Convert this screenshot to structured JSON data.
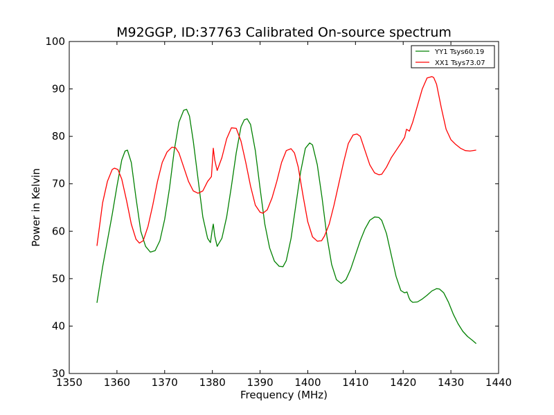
{
  "chart_data": {
    "type": "line",
    "title": "M92GGP, ID:37763 Calibrated On-source spectrum",
    "xlabel": "Frequency (MHz)",
    "ylabel": "Power in Kelvin",
    "xlim": [
      1350,
      1440
    ],
    "ylim": [
      30,
      100
    ],
    "xticks": [
      "1350",
      "1360",
      "1370",
      "1380",
      "1390",
      "1400",
      "1410",
      "1420",
      "1430",
      "1440"
    ],
    "yticks": [
      "30",
      "40",
      "50",
      "60",
      "70",
      "80",
      "90",
      "100"
    ],
    "grid": false,
    "legend_position": "top-right",
    "series": [
      {
        "name": "YY1 Tsys60.19",
        "color": "#008000",
        "x": [
          1355.8,
          1357,
          1358,
          1359,
          1360,
          1361,
          1361.7,
          1362.2,
          1363,
          1364,
          1365,
          1366,
          1367,
          1368,
          1369,
          1370,
          1371,
          1372,
          1373,
          1374,
          1374.6,
          1375.2,
          1376,
          1377,
          1378,
          1379,
          1379.6,
          1380,
          1380.2,
          1380.5,
          1381,
          1382,
          1383,
          1384,
          1385,
          1386,
          1386.7,
          1387.3,
          1388,
          1389,
          1390,
          1391,
          1392,
          1393,
          1394,
          1394.8,
          1395.5,
          1396.5,
          1397.5,
          1398.5,
          1399.5,
          1400.4,
          1401,
          1402,
          1403,
          1404,
          1405,
          1406,
          1407,
          1408,
          1409,
          1410,
          1411,
          1412,
          1413,
          1414,
          1414.9,
          1415.5,
          1416.5,
          1417.5,
          1418.5,
          1419.5,
          1420.3,
          1420.8,
          1421.2,
          1421.5,
          1422,
          1423,
          1424,
          1425,
          1426,
          1427,
          1427.6,
          1428.5,
          1429.5,
          1430.5,
          1431.5,
          1432.5,
          1433.5,
          1434.5,
          1435.3
        ],
        "y": [
          44.9,
          52.5,
          58.0,
          63.5,
          69.5,
          75.0,
          76.9,
          77.1,
          74.5,
          67.0,
          60.0,
          56.8,
          55.6,
          55.9,
          58.0,
          62.5,
          69.0,
          77.0,
          83.0,
          85.5,
          85.7,
          84.3,
          79.0,
          71.0,
          63.0,
          58.5,
          57.6,
          60.5,
          61.5,
          59.0,
          56.8,
          58.5,
          63.0,
          69.5,
          76.5,
          82.0,
          83.5,
          83.7,
          82.5,
          77.0,
          69.0,
          61.5,
          56.5,
          53.7,
          52.6,
          52.5,
          53.8,
          58.5,
          65.5,
          72.5,
          77.5,
          78.6,
          78.2,
          74.0,
          67.0,
          59.0,
          53.0,
          49.8,
          49.0,
          49.8,
          52.0,
          55.0,
          58.0,
          60.5,
          62.3,
          63.0,
          62.9,
          62.3,
          59.5,
          55.0,
          50.5,
          47.5,
          47.0,
          47.2,
          46.0,
          45.4,
          45.0,
          45.1,
          45.7,
          46.5,
          47.4,
          47.9,
          47.8,
          47.0,
          45.0,
          42.5,
          40.5,
          38.9,
          37.8,
          37.0,
          36.3
        ]
      },
      {
        "name": "XX1 Tsys73.07",
        "color": "#ff0000",
        "x": [
          1355.8,
          1357,
          1358,
          1359,
          1359.5,
          1360.2,
          1361,
          1362,
          1363,
          1364,
          1364.7,
          1365.5,
          1366.5,
          1367.5,
          1368.5,
          1369.5,
          1370.5,
          1371.5,
          1372.3,
          1373,
          1374,
          1375,
          1376,
          1377,
          1378,
          1379,
          1379.8,
          1380.2,
          1380.5,
          1381,
          1382,
          1383,
          1384,
          1385,
          1386,
          1387,
          1388,
          1389,
          1390,
          1390.6,
          1391.5,
          1392.5,
          1393.5,
          1394.5,
          1395.5,
          1396.5,
          1397.2,
          1398,
          1399,
          1400,
          1401,
          1402,
          1402.9,
          1403.5,
          1404.5,
          1405.5,
          1406.5,
          1407.5,
          1408.5,
          1409.5,
          1410.3,
          1411,
          1412,
          1413,
          1414,
          1414.9,
          1415.5,
          1416.5,
          1417.5,
          1418.5,
          1419.5,
          1420.3,
          1420.7,
          1421,
          1421.3,
          1422,
          1423,
          1424,
          1425,
          1426,
          1426.4,
          1427,
          1428,
          1429,
          1430,
          1431,
          1432,
          1433,
          1434,
          1435.3
        ],
        "y": [
          56.9,
          66.0,
          70.5,
          73.0,
          73.3,
          73.0,
          71.0,
          66.5,
          61.5,
          58.3,
          57.5,
          58.0,
          61.0,
          65.5,
          70.5,
          74.5,
          76.7,
          77.7,
          77.6,
          76.5,
          73.5,
          70.5,
          68.5,
          68.0,
          68.5,
          70.5,
          71.5,
          77.5,
          75.0,
          72.8,
          75.5,
          79.5,
          81.8,
          81.7,
          79.0,
          74.5,
          69.5,
          65.5,
          64.0,
          63.8,
          64.5,
          67.0,
          70.5,
          74.5,
          77.0,
          77.4,
          76.5,
          73.5,
          67.5,
          62.0,
          58.8,
          57.9,
          58.0,
          59.0,
          61.5,
          65.5,
          70.0,
          74.5,
          78.5,
          80.3,
          80.5,
          80.0,
          77.0,
          74.0,
          72.3,
          71.9,
          72.0,
          73.5,
          75.5,
          77.0,
          78.5,
          79.8,
          81.5,
          81.3,
          81.1,
          83.0,
          86.5,
          90.0,
          92.3,
          92.6,
          92.4,
          91.0,
          86.0,
          81.5,
          79.3,
          78.3,
          77.5,
          77.0,
          76.9,
          77.1
        ]
      }
    ]
  }
}
